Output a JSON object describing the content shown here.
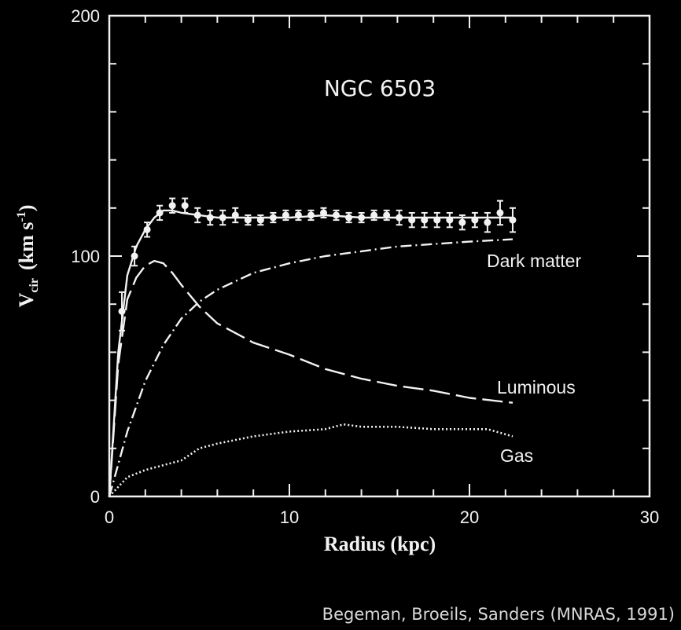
{
  "chart_data": {
    "type": "line",
    "title": "NGC 6503",
    "xlabel": "Radius (kpc)",
    "ylabel": "V_cir (km s^-1)",
    "ylabel_main": "V",
    "ylabel_sub": "cir",
    "ylabel_unit": "(km s",
    "ylabel_exp": "-1",
    "ylabel_close": ")",
    "xlim": [
      0,
      30
    ],
    "ylim": [
      0,
      200
    ],
    "xticks": [
      0,
      10,
      20,
      30
    ],
    "xtick_labels": [
      "0",
      "10",
      "20",
      "30"
    ],
    "yticks": [
      0,
      100,
      200
    ],
    "ytick_labels": [
      "0",
      "100",
      "200"
    ],
    "grid": false,
    "colors": {
      "background": "#000000",
      "foreground": "#f2f2f2"
    },
    "annotations": {
      "dark_matter": "Dark matter",
      "luminous": "Luminous",
      "gas": "Gas"
    },
    "observed": {
      "x": [
        0.7,
        1.4,
        2.1,
        2.8,
        3.5,
        4.2,
        4.9,
        5.6,
        6.3,
        7.0,
        7.7,
        8.4,
        9.1,
        9.8,
        10.5,
        11.2,
        11.9,
        12.6,
        13.3,
        14.0,
        14.7,
        15.4,
        16.1,
        16.8,
        17.5,
        18.2,
        18.9,
        19.6,
        20.3,
        21.0,
        21.7,
        22.4
      ],
      "y": [
        77,
        100,
        111,
        118,
        121,
        121,
        117,
        116,
        116,
        117,
        115,
        115,
        116,
        117,
        117,
        117,
        118,
        117,
        116,
        116,
        117,
        117,
        116,
        115,
        115,
        115,
        115,
        114,
        115,
        114,
        118,
        115
      ],
      "err": [
        8,
        4,
        3,
        3,
        3,
        3,
        3,
        3,
        3,
        3,
        2,
        2,
        2,
        2,
        2,
        2,
        2,
        2,
        2,
        2,
        2,
        2,
        3,
        3,
        3,
        3,
        3,
        3,
        3,
        4,
        5,
        5
      ]
    },
    "series": [
      {
        "key": "total",
        "style": "solid",
        "x": [
          0,
          0.5,
          1.0,
          1.5,
          2.0,
          2.5,
          3.0,
          3.5,
          4.0,
          5,
          6,
          8,
          10,
          12,
          14,
          16,
          18,
          20,
          22.4
        ],
        "y": [
          0,
          60,
          92,
          104,
          111,
          116,
          119,
          119,
          118,
          117,
          116,
          116,
          116,
          117,
          116,
          116,
          116,
          116,
          116
        ]
      },
      {
        "key": "dark_matter",
        "style": "dashdot",
        "x": [
          0,
          1,
          2,
          3,
          4,
          5,
          6,
          8,
          10,
          12,
          14,
          16,
          18,
          20,
          22.4
        ],
        "y": [
          0,
          27,
          48,
          63,
          74,
          81,
          86,
          93,
          97,
          100,
          102,
          104,
          105,
          106,
          107
        ]
      },
      {
        "key": "luminous",
        "style": "longdash",
        "x": [
          0,
          0.5,
          1.0,
          1.5,
          2.0,
          2.5,
          3.0,
          3.5,
          4,
          5,
          6,
          8,
          10,
          12,
          14,
          16,
          18,
          20,
          22.4
        ],
        "y": [
          0,
          55,
          82,
          91,
          96,
          98,
          97,
          93,
          88,
          79,
          72,
          64,
          59,
          53,
          49,
          46,
          44,
          41,
          39
        ]
      },
      {
        "key": "gas",
        "style": "dotted",
        "x": [
          0,
          1,
          2,
          3,
          4,
          5,
          6,
          8,
          10,
          12,
          13,
          14,
          16,
          18,
          20,
          21,
          22.4
        ],
        "y": [
          0,
          8,
          11,
          13,
          15,
          20,
          22,
          25,
          27,
          28,
          30,
          29,
          29,
          28,
          28,
          28,
          25
        ]
      }
    ]
  },
  "caption": "Begeman, Broeils, Sanders (MNRAS, 1991)"
}
